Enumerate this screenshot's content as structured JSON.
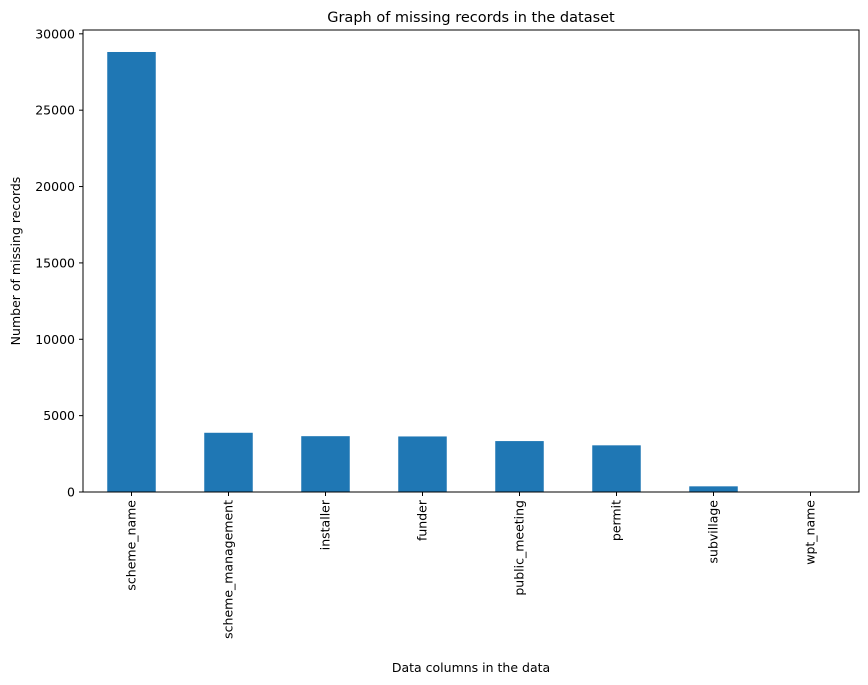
{
  "chart_data": {
    "type": "bar",
    "title": "Graph of missing records in the dataset",
    "xlabel": "Data columns in the data",
    "ylabel": "Number of missing records",
    "categories": [
      "scheme_name",
      "scheme_management",
      "installer",
      "funder",
      "public_meeting",
      "permit",
      "subvillage",
      "wpt_name"
    ],
    "values": [
      28810,
      3878,
      3655,
      3637,
      3334,
      3056,
      371,
      2
    ],
    "ylim": [
      0,
      30250
    ],
    "yticks": [
      0,
      5000,
      10000,
      15000,
      20000,
      25000,
      30000
    ],
    "grid": false,
    "legend": "none",
    "bar_color": "#1f77b4"
  }
}
